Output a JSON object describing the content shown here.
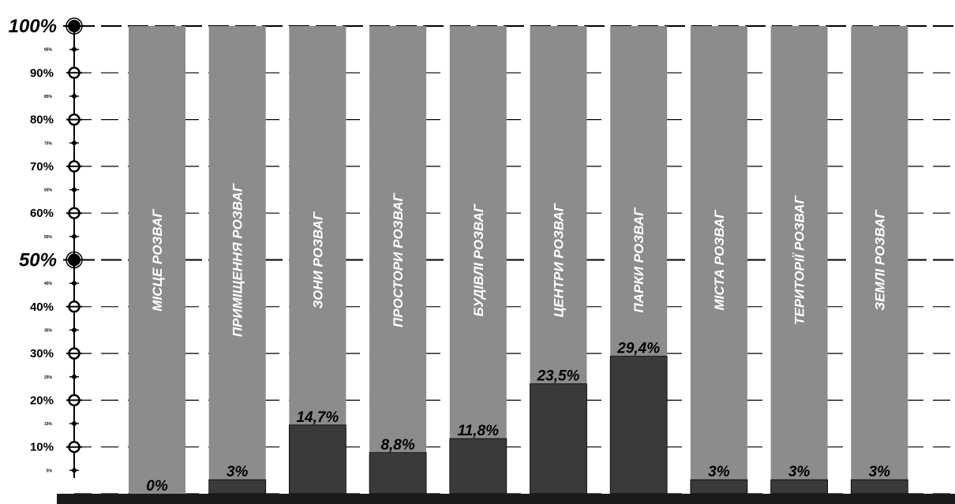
{
  "chart_data": {
    "type": "bar",
    "categories": [
      "МІСЦЕ РОЗВАГ",
      "ПРИМІЩЕННЯ РОЗВАГ",
      "ЗОНИ РОЗВАГ",
      "ПРОСТОРИ РОЗВАГ",
      "БУДІВЛІ РОЗВАГ",
      "ЦЕНТРИ РОЗВАГ",
      "ПАРКИ РОЗВАГ",
      "МІСТА РОЗВАГ",
      "ТЕРИТОРІЇ РОЗВАГ",
      "ЗЕМЛІ РОЗВАГ"
    ],
    "values": [
      0,
      3,
      14.7,
      8.8,
      11.8,
      23.5,
      29.4,
      3,
      3,
      3
    ],
    "data_labels": [
      "0%",
      "3%",
      "14,7%",
      "8,8%",
      "11,8%",
      "23,5%",
      "29,4%",
      "3%",
      "3%",
      "3%"
    ],
    "ylim": [
      0,
      100
    ],
    "y_major_ticks": [
      "100%",
      "50%"
    ],
    "y_ticks": [
      "90%",
      "80%",
      "70%",
      "60%",
      "40%",
      "30%",
      "20%",
      "10%"
    ],
    "y_minor_ticks": [
      "95%",
      "85%",
      "75%",
      "65%",
      "55%",
      "45%",
      "35%",
      "25%",
      "15%",
      "5%"
    ],
    "title": "",
    "xlabel": "",
    "ylabel": "",
    "grid": true,
    "colors": {
      "background_bar": "#8c8c8c",
      "value_bar": "#3a3a3a",
      "axis": "#000000",
      "baseline": "#1a1a1a"
    }
  }
}
